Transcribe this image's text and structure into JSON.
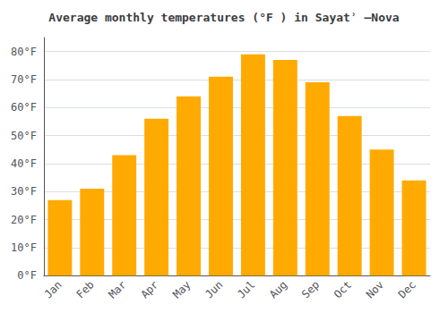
{
  "chart_data": {
    "type": "bar",
    "title": "Average monthly temperatures (°F ) in Sayatʾ –Nova",
    "categories": [
      "Jan",
      "Feb",
      "Mar",
      "Apr",
      "May",
      "Jun",
      "Jul",
      "Aug",
      "Sep",
      "Oct",
      "Nov",
      "Dec"
    ],
    "values": [
      27,
      31,
      43,
      56,
      64,
      71,
      79,
      77,
      69,
      57,
      45,
      34
    ],
    "color": "#FFAA00",
    "ylim": [
      0,
      85
    ],
    "yticks": [
      {
        "value": 0,
        "label": "0°F"
      },
      {
        "value": 10,
        "label": "10°F"
      },
      {
        "value": 20,
        "label": "20°F"
      },
      {
        "value": 30,
        "label": "30°F"
      },
      {
        "value": 40,
        "label": "40°F"
      },
      {
        "value": 50,
        "label": "50°F"
      },
      {
        "value": 60,
        "label": "60°F"
      },
      {
        "value": 70,
        "label": "70°F"
      },
      {
        "value": 80,
        "label": "80°F"
      }
    ],
    "grid": true
  }
}
